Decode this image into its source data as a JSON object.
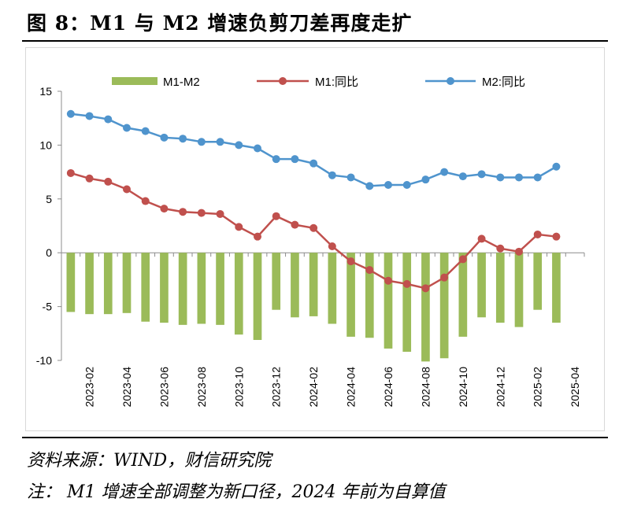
{
  "figure": {
    "title": "图 8：M1 与 M2 增速负剪刀差再度走扩",
    "source": "资料来源：WIND，财信研究院",
    "note": "注：  M1 增速全部调整为新口径，2024 年前为自算值"
  },
  "chart_data": {
    "type": "bar+line",
    "categories": [
      "2023-01",
      "2023-02",
      "2023-03",
      "2023-04",
      "2023-05",
      "2023-06",
      "2023-07",
      "2023-08",
      "2023-09",
      "2023-10",
      "2023-11",
      "2023-12",
      "2024-01",
      "2024-02",
      "2024-03",
      "2024-04",
      "2024-05",
      "2024-06",
      "2024-07",
      "2024-08",
      "2024-09",
      "2024-10",
      "2024-11",
      "2024-12",
      "2025-01",
      "2025-02",
      "2025-03",
      "2025-04"
    ],
    "x_tick_labels": [
      "2023-02",
      "2023-04",
      "2023-06",
      "2023-08",
      "2023-10",
      "2023-12",
      "2024-02",
      "2024-04",
      "2024-06",
      "2024-08",
      "2024-10",
      "2024-12",
      "2025-02",
      "2025-04"
    ],
    "series": [
      {
        "name": "M1-M2",
        "kind": "bar",
        "color": "#9bbb59",
        "values": [
          -5.5,
          -5.7,
          -5.7,
          -5.6,
          -6.4,
          -6.5,
          -6.7,
          -6.6,
          -6.7,
          -7.6,
          -8.1,
          -5.3,
          -6.0,
          -5.9,
          -6.6,
          -7.8,
          -7.9,
          -8.9,
          -9.2,
          -10.1,
          -9.8,
          -7.8,
          -6.0,
          -6.5,
          -6.9,
          -5.3,
          -6.5,
          null
        ]
      },
      {
        "name": "M1:同比",
        "kind": "line",
        "color": "#c0504d",
        "values": [
          7.4,
          6.9,
          6.6,
          5.9,
          4.8,
          4.1,
          3.8,
          3.7,
          3.6,
          2.4,
          1.5,
          3.4,
          2.6,
          2.3,
          0.6,
          -0.8,
          -1.6,
          -2.6,
          -2.9,
          -3.3,
          -2.3,
          -0.6,
          1.3,
          0.4,
          0.1,
          1.7,
          1.5,
          null
        ]
      },
      {
        "name": "M2:同比",
        "kind": "line",
        "color": "#4f94cd",
        "values": [
          12.9,
          12.7,
          12.4,
          11.6,
          11.3,
          10.7,
          10.6,
          10.3,
          10.3,
          10.0,
          9.7,
          8.7,
          8.7,
          8.3,
          7.2,
          7.0,
          6.2,
          6.3,
          6.3,
          6.8,
          7.5,
          7.1,
          7.3,
          7.0,
          7.0,
          7.0,
          8.0,
          null
        ]
      }
    ],
    "ylim": [
      -10,
      15
    ],
    "yticks": [
      -10,
      -5,
      0,
      5,
      10,
      15
    ],
    "xlabel": "",
    "ylabel": "",
    "legend_position": "top",
    "grid": false
  }
}
